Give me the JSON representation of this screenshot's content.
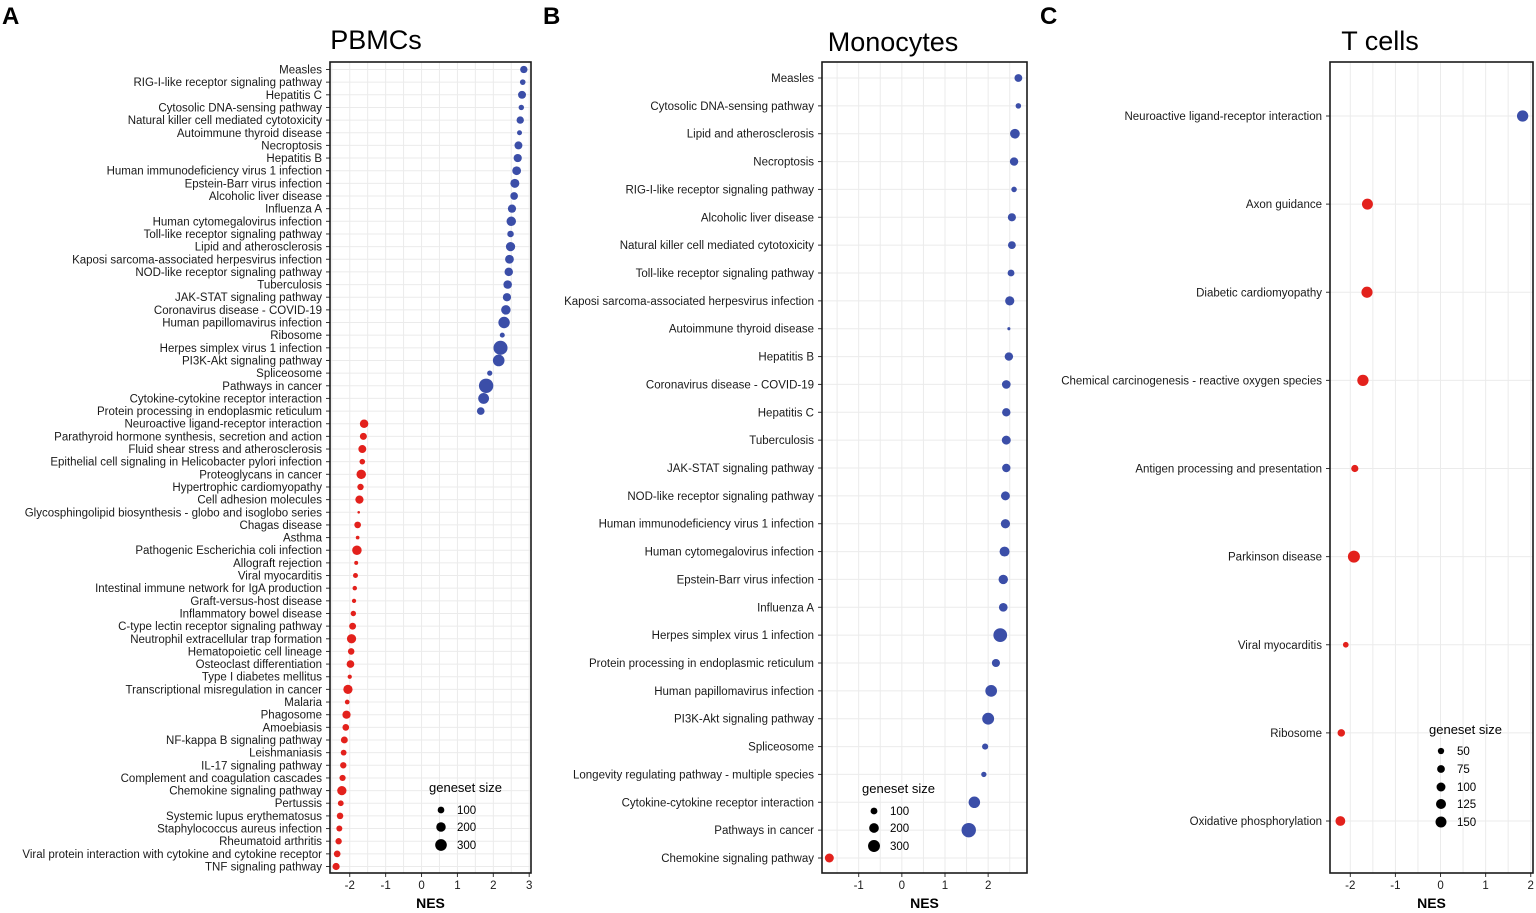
{
  "chart_data": [
    {
      "panel": "A",
      "type": "scatter",
      "title": "PBMCs",
      "xlabel": "NES",
      "xlim": [
        -2.55,
        3.05
      ],
      "xticks": [
        -2,
        -1,
        0,
        1,
        2,
        3
      ],
      "legend": {
        "title": "geneset size",
        "sizes": [
          100,
          200,
          300
        ],
        "position": "bottom-right"
      },
      "colors": {
        "up": "#3b4ea8",
        "down": "#e3211c"
      },
      "points": [
        {
          "pathway": "Measles",
          "nes": 2.85,
          "size": 120
        },
        {
          "pathway": "RIG-I-like receptor signaling pathway",
          "nes": 2.82,
          "size": 70
        },
        {
          "pathway": "Hepatitis C",
          "nes": 2.8,
          "size": 140
        },
        {
          "pathway": "Cytosolic DNA-sensing pathway",
          "nes": 2.78,
          "size": 65
        },
        {
          "pathway": "Natural killer cell mediated cytotoxicity",
          "nes": 2.75,
          "size": 120
        },
        {
          "pathway": "Autoimmune thyroid disease",
          "nes": 2.73,
          "size": 55
        },
        {
          "pathway": "Necroptosis",
          "nes": 2.7,
          "size": 140
        },
        {
          "pathway": "Hepatitis B",
          "nes": 2.68,
          "size": 150
        },
        {
          "pathway": "Human immunodeficiency virus 1 infection",
          "nes": 2.65,
          "size": 170
        },
        {
          "pathway": "Epstein-Barr virus infection",
          "nes": 2.6,
          "size": 180
        },
        {
          "pathway": "Alcoholic liver disease",
          "nes": 2.58,
          "size": 130
        },
        {
          "pathway": "Influenza A",
          "nes": 2.52,
          "size": 150
        },
        {
          "pathway": "Human cytomegalovirus infection",
          "nes": 2.5,
          "size": 200
        },
        {
          "pathway": "Toll-like receptor signaling pathway",
          "nes": 2.48,
          "size": 95
        },
        {
          "pathway": "Lipid and atherosclerosis",
          "nes": 2.48,
          "size": 190
        },
        {
          "pathway": "Kaposi sarcoma-associated herpesvirus infection",
          "nes": 2.45,
          "size": 170
        },
        {
          "pathway": "NOD-like receptor signaling pathway",
          "nes": 2.43,
          "size": 160
        },
        {
          "pathway": "Tuberculosis",
          "nes": 2.4,
          "size": 160
        },
        {
          "pathway": "JAK-STAT signaling pathway",
          "nes": 2.38,
          "size": 150
        },
        {
          "pathway": "Coronavirus disease - COVID-19",
          "nes": 2.35,
          "size": 200
        },
        {
          "pathway": "Human papillomavirus infection",
          "nes": 2.3,
          "size": 290
        },
        {
          "pathway": "Ribosome",
          "nes": 2.25,
          "size": 55
        },
        {
          "pathway": "Herpes simplex virus 1 infection",
          "nes": 2.2,
          "size": 440
        },
        {
          "pathway": "PI3K-Akt signaling pathway",
          "nes": 2.15,
          "size": 300
        },
        {
          "pathway": "Spliceosome",
          "nes": 1.9,
          "size": 60
        },
        {
          "pathway": "Pathways in cancer",
          "nes": 1.8,
          "size": 460
        },
        {
          "pathway": "Cytokine-cytokine receptor interaction",
          "nes": 1.73,
          "size": 260
        },
        {
          "pathway": "Protein processing in endoplasmic reticulum",
          "nes": 1.65,
          "size": 130
        },
        {
          "pathway": "Neuroactive ligand-receptor interaction",
          "nes": -1.6,
          "size": 160
        },
        {
          "pathway": "Parathyroid hormone synthesis, secretion and action",
          "nes": -1.62,
          "size": 110
        },
        {
          "pathway": "Fluid shear stress and atherosclerosis",
          "nes": -1.65,
          "size": 140
        },
        {
          "pathway": "Epithelial cell signaling in Helicobacter pylori infection",
          "nes": -1.65,
          "size": 70
        },
        {
          "pathway": "Proteoglycans in cancer",
          "nes": -1.68,
          "size": 200
        },
        {
          "pathway": "Hypertrophic cardiomyopathy",
          "nes": -1.7,
          "size": 90
        },
        {
          "pathway": "Cell adhesion molecules",
          "nes": -1.73,
          "size": 150
        },
        {
          "pathway": "Glycosphingolipid biosynthesis - globo and isoglobo series",
          "nes": -1.75,
          "size": 15
        },
        {
          "pathway": "Chagas disease",
          "nes": -1.78,
          "size": 100
        },
        {
          "pathway": "Asthma",
          "nes": -1.78,
          "size": 30
        },
        {
          "pathway": "Pathogenic Escherichia coli infection",
          "nes": -1.8,
          "size": 200
        },
        {
          "pathway": "Allograft rejection",
          "nes": -1.82,
          "size": 35
        },
        {
          "pathway": "Viral myocarditis",
          "nes": -1.84,
          "size": 55
        },
        {
          "pathway": "Intestinal immune network for IgA production",
          "nes": -1.86,
          "size": 45
        },
        {
          "pathway": "Graft-versus-host disease",
          "nes": -1.88,
          "size": 40
        },
        {
          "pathway": "Inflammatory bowel disease",
          "nes": -1.9,
          "size": 65
        },
        {
          "pathway": "C-type lectin receptor signaling pathway",
          "nes": -1.92,
          "size": 105
        },
        {
          "pathway": "Neutrophil extracellular trap formation",
          "nes": -1.95,
          "size": 190
        },
        {
          "pathway": "Hematopoietic cell lineage",
          "nes": -1.96,
          "size": 95
        },
        {
          "pathway": "Osteoclast differentiation",
          "nes": -1.98,
          "size": 130
        },
        {
          "pathway": "Type I diabetes mellitus",
          "nes": -2.0,
          "size": 40
        },
        {
          "pathway": "Transcriptional misregulation in cancer",
          "nes": -2.05,
          "size": 190
        },
        {
          "pathway": "Malaria",
          "nes": -2.07,
          "size": 50
        },
        {
          "pathway": "Phagosome",
          "nes": -2.09,
          "size": 150
        },
        {
          "pathway": "Amoebiasis",
          "nes": -2.11,
          "size": 100
        },
        {
          "pathway": "NF-kappa B signaling pathway",
          "nes": -2.15,
          "size": 105
        },
        {
          "pathway": "Leishmaniasis",
          "nes": -2.17,
          "size": 75
        },
        {
          "pathway": "IL-17 signaling pathway",
          "nes": -2.18,
          "size": 90
        },
        {
          "pathway": "Complement and coagulation cascades",
          "nes": -2.2,
          "size": 85
        },
        {
          "pathway": "Chemokine signaling pathway",
          "nes": -2.22,
          "size": 190
        },
        {
          "pathway": "Pertussis",
          "nes": -2.25,
          "size": 75
        },
        {
          "pathway": "Systemic lupus erythematosus",
          "nes": -2.27,
          "size": 95
        },
        {
          "pathway": "Staphylococcus aureus infection",
          "nes": -2.29,
          "size": 80
        },
        {
          "pathway": "Rheumatoid arthritis",
          "nes": -2.31,
          "size": 90
        },
        {
          "pathway": "Viral protein interaction with cytokine and cytokine receptor",
          "nes": -2.35,
          "size": 100
        },
        {
          "pathway": "TNF signaling pathway",
          "nes": -2.38,
          "size": 115
        }
      ]
    },
    {
      "panel": "B",
      "type": "scatter",
      "title": "Monocytes",
      "xlabel": "NES",
      "xlim": [
        -1.85,
        2.9
      ],
      "xticks": [
        -1,
        0,
        1,
        2
      ],
      "legend": {
        "title": "geneset size",
        "sizes": [
          100,
          200,
          300
        ],
        "position": "bottom-right"
      },
      "colors": {
        "up": "#3b4ea8",
        "down": "#e3211c"
      },
      "points": [
        {
          "pathway": "Measles",
          "nes": 2.7,
          "size": 130
        },
        {
          "pathway": "Cytosolic DNA-sensing pathway",
          "nes": 2.7,
          "size": 65
        },
        {
          "pathway": "Lipid and atherosclerosis",
          "nes": 2.62,
          "size": 200
        },
        {
          "pathway": "Necroptosis",
          "nes": 2.6,
          "size": 150
        },
        {
          "pathway": "RIG-I-like receptor signaling pathway",
          "nes": 2.6,
          "size": 65
        },
        {
          "pathway": "Alcoholic liver disease",
          "nes": 2.55,
          "size": 140
        },
        {
          "pathway": "Natural killer cell mediated cytotoxicity",
          "nes": 2.55,
          "size": 130
        },
        {
          "pathway": "Toll-like receptor signaling pathway",
          "nes": 2.53,
          "size": 100
        },
        {
          "pathway": "Kaposi sarcoma-associated herpesvirus infection",
          "nes": 2.5,
          "size": 180
        },
        {
          "pathway": "Autoimmune thyroid disease",
          "nes": 2.48,
          "size": 20
        },
        {
          "pathway": "Hepatitis B",
          "nes": 2.48,
          "size": 150
        },
        {
          "pathway": "Coronavirus disease - COVID-19",
          "nes": 2.42,
          "size": 160
        },
        {
          "pathway": "Hepatitis C",
          "nes": 2.42,
          "size": 150
        },
        {
          "pathway": "Tuberculosis",
          "nes": 2.42,
          "size": 170
        },
        {
          "pathway": "JAK-STAT signaling pathway",
          "nes": 2.42,
          "size": 150
        },
        {
          "pathway": "NOD-like receptor signaling pathway",
          "nes": 2.4,
          "size": 170
        },
        {
          "pathway": "Human immunodeficiency virus 1 infection",
          "nes": 2.4,
          "size": 180
        },
        {
          "pathway": "Human cytomegalovirus infection",
          "nes": 2.38,
          "size": 210
        },
        {
          "pathway": "Epstein-Barr virus infection",
          "nes": 2.35,
          "size": 190
        },
        {
          "pathway": "Influenza A",
          "nes": 2.35,
          "size": 160
        },
        {
          "pathway": "Herpes simplex virus 1 infection",
          "nes": 2.28,
          "size": 400
        },
        {
          "pathway": "Protein processing in endoplasmic reticulum",
          "nes": 2.18,
          "size": 140
        },
        {
          "pathway": "Human papillomavirus infection",
          "nes": 2.07,
          "size": 290
        },
        {
          "pathway": "PI3K-Akt signaling pathway",
          "nes": 2.0,
          "size": 300
        },
        {
          "pathway": "Spliceosome",
          "nes": 1.93,
          "size": 80
        },
        {
          "pathway": "Longevity regulating pathway - multiple species",
          "nes": 1.9,
          "size": 60
        },
        {
          "pathway": "Cytokine-cytokine receptor interaction",
          "nes": 1.68,
          "size": 280
        },
        {
          "pathway": "Pathways in cancer",
          "nes": 1.55,
          "size": 440
        },
        {
          "pathway": "Chemokine signaling pathway",
          "nes": -1.68,
          "size": 170
        }
      ]
    },
    {
      "panel": "C",
      "type": "scatter",
      "title": "T cells",
      "xlabel": "NES",
      "xlim": [
        -2.45,
        2.05
      ],
      "xticks": [
        -2,
        -1,
        0,
        1,
        2
      ],
      "legend": {
        "title": "geneset size",
        "sizes": [
          50,
          75,
          100,
          125,
          150
        ],
        "position": "bottom-right"
      },
      "colors": {
        "up": "#3b4ea8",
        "down": "#e3211c"
      },
      "points": [
        {
          "pathway": "Neuroactive ligand-receptor interaction",
          "nes": 1.82,
          "size": 160
        },
        {
          "pathway": "Axon guidance",
          "nes": -1.62,
          "size": 150
        },
        {
          "pathway": "Diabetic cardiomyopathy",
          "nes": -1.63,
          "size": 155
        },
        {
          "pathway": "Chemical carcinogenesis - reactive oxygen species",
          "nes": -1.72,
          "size": 160
        },
        {
          "pathway": "Antigen processing and presentation",
          "nes": -1.9,
          "size": 65
        },
        {
          "pathway": "Parkinson disease",
          "nes": -1.92,
          "size": 180
        },
        {
          "pathway": "Viral myocarditis",
          "nes": -2.1,
          "size": 40
        },
        {
          "pathway": "Ribosome",
          "nes": -2.2,
          "size": 70
        },
        {
          "pathway": "Oxidative phosphorylation",
          "nes": -2.22,
          "size": 120
        }
      ]
    }
  ]
}
